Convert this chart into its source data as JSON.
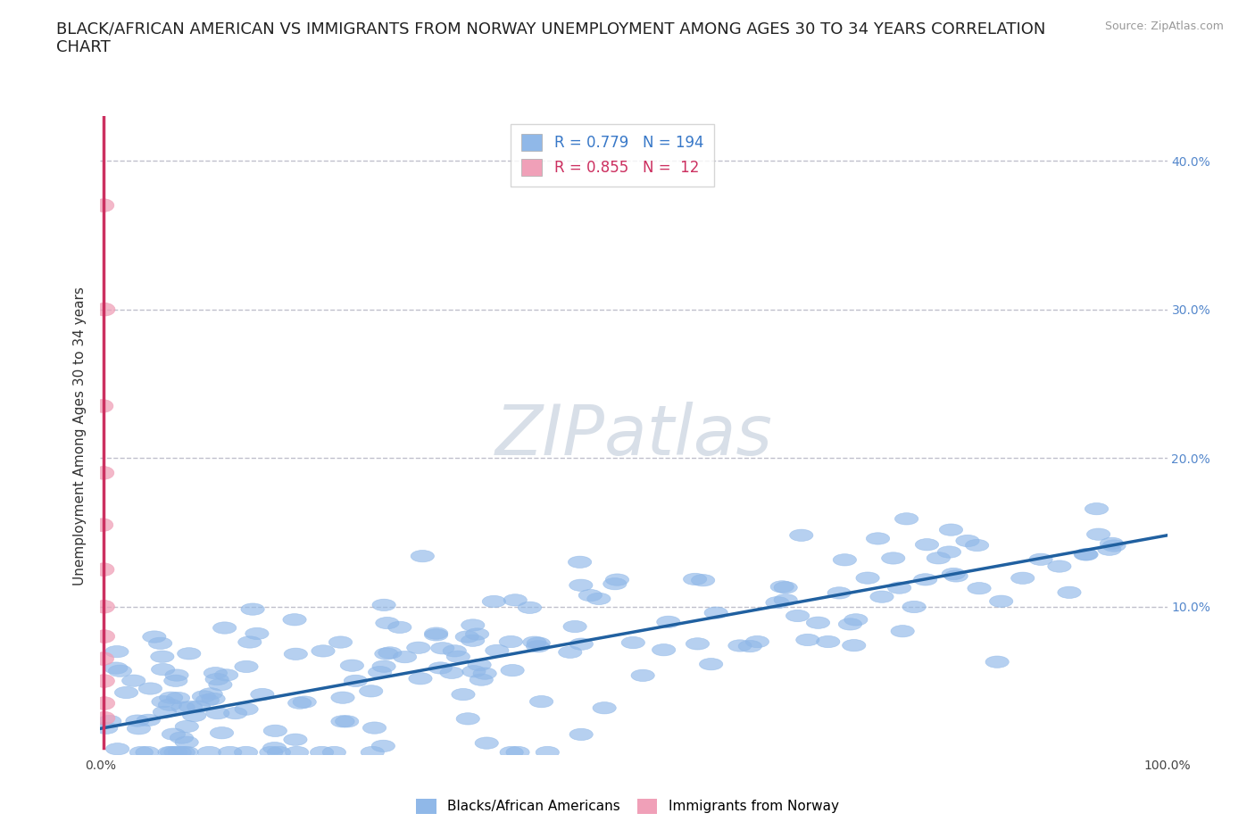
{
  "title": "BLACK/AFRICAN AMERICAN VS IMMIGRANTS FROM NORWAY UNEMPLOYMENT AMONG AGES 30 TO 34 YEARS CORRELATION\nCHART",
  "source_text": "Source: ZipAtlas.com",
  "ylabel": "Unemployment Among Ages 30 to 34 years",
  "xlabel": "",
  "xlim": [
    0,
    1.0
  ],
  "ylim": [
    0,
    0.43
  ],
  "blue_R": 0.779,
  "blue_N": 194,
  "pink_R": 0.855,
  "pink_N": 12,
  "blue_color": "#90b8e8",
  "pink_color": "#f0a0b8",
  "blue_line_color": "#2060a0",
  "pink_line_color": "#cc3060",
  "legend_color": "#3878c8",
  "pink_legend_color": "#cc3060",
  "watermark_color": "#d8dfe8",
  "background_color": "#ffffff",
  "grid_color": "#c0c0cc",
  "title_fontsize": 13,
  "axis_fontsize": 11,
  "tick_fontsize": 10,
  "blue_line_x0": 0.0,
  "blue_line_y0": 0.018,
  "blue_line_x1": 1.0,
  "blue_line_y1": 0.148,
  "pink_line_x0": 0.003,
  "pink_line_y0": 0.0,
  "pink_line_x1": 0.003,
  "pink_line_y1": 0.43
}
